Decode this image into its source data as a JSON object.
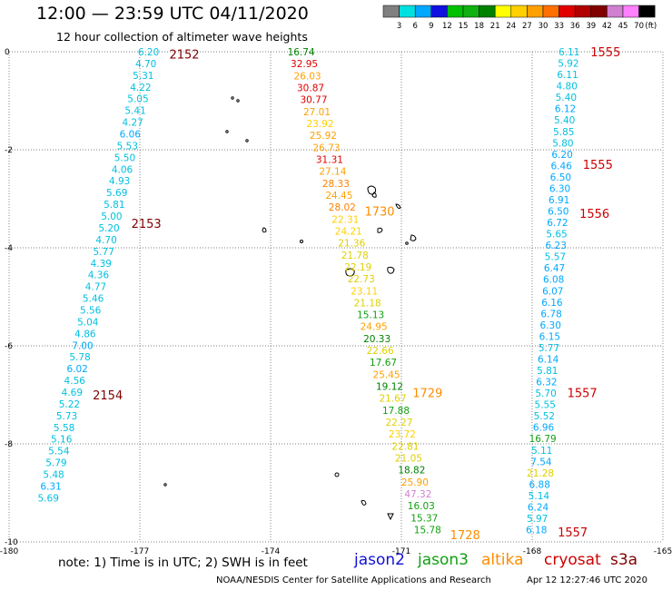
{
  "title": "12:00 — 23:59 UTC 04/11/2020",
  "subtitle": "12 hour collection of altimeter wave heights",
  "note": "note: 1) Time is in UTC; 2) SWH is in feet",
  "credit_org": "NOAA/NESDIS Center for Satellite Applications and Research",
  "credit_time": "Apr 12 12:27:46 UTC 2020",
  "satellites": [
    {
      "name": "jason2",
      "color": "#1010d8"
    },
    {
      "name": "jason3",
      "color": "#10a010"
    },
    {
      "name": "altika",
      "color": "#ff8c00"
    },
    {
      "name": "cryosat",
      "color": "#cc0000"
    },
    {
      "name": "s3a",
      "color": "#800000"
    }
  ],
  "colorbar": {
    "unit": "(ft)",
    "labels": [
      "3",
      "6",
      "9",
      "12",
      "15",
      "18",
      "21",
      "24",
      "27",
      "30",
      "33",
      "36",
      "39",
      "42",
      "45",
      "70"
    ],
    "colors": [
      "#808080",
      "#00e0e0",
      "#00a8ff",
      "#1010e0",
      "#00c000",
      "#10b010",
      "#008000",
      "#ffff00",
      "#ffd000",
      "#ffa000",
      "#ff7000",
      "#e00000",
      "#b00000",
      "#800000",
      "#d080d0",
      "#ff80ff",
      "#000000"
    ]
  },
  "axes": {
    "x_ticks": [
      "-180",
      "-177",
      "-174",
      "-171",
      "-168",
      "-165"
    ],
    "y_ticks": [
      "0",
      "-2",
      "-4",
      "-6",
      "-8",
      "-10"
    ],
    "lon_range": [
      -180,
      -165
    ],
    "lat_range": [
      -10,
      0
    ],
    "grid": "dotted"
  },
  "tracks": [
    {
      "satellite": "s3a",
      "lon_start": -176.8,
      "lon_end": -179.1,
      "lat_start": 0,
      "lat_end": -9.1,
      "values": [
        {
          "v": "6.20",
          "c": "#00c0e0"
        },
        {
          "v": "4.70",
          "c": "#00c0e0"
        },
        {
          "v": "5.31",
          "c": "#00c0e0"
        },
        {
          "v": "4.22",
          "c": "#00c0e0"
        },
        {
          "v": "5.05",
          "c": "#00c0e0"
        },
        {
          "v": "5.41",
          "c": "#00c0e0"
        },
        {
          "v": "4.27",
          "c": "#00c0e0"
        },
        {
          "v": "6.06",
          "c": "#00a8ff"
        },
        {
          "v": "5.53",
          "c": "#00c0e0"
        },
        {
          "v": "5.50",
          "c": "#00c0e0"
        },
        {
          "v": "4.06",
          "c": "#00c0e0"
        },
        {
          "v": "4.93",
          "c": "#00c0e0"
        },
        {
          "v": "5.69",
          "c": "#00c0e0"
        },
        {
          "v": "5.81",
          "c": "#00c0e0"
        },
        {
          "v": "5.00",
          "c": "#00c0e0"
        },
        {
          "v": "5.20",
          "c": "#00c0e0"
        },
        {
          "v": "4.70",
          "c": "#00c0e0"
        },
        {
          "v": "5.77",
          "c": "#00c0e0"
        },
        {
          "v": "4.39",
          "c": "#00c0e0"
        },
        {
          "v": "4.36",
          "c": "#00c0e0"
        },
        {
          "v": "4.77",
          "c": "#00c0e0"
        },
        {
          "v": "5.46",
          "c": "#00c0e0"
        },
        {
          "v": "5.56",
          "c": "#00c0e0"
        },
        {
          "v": "5.04",
          "c": "#00c0e0"
        },
        {
          "v": "4.86",
          "c": "#00c0e0"
        },
        {
          "v": "7.00",
          "c": "#00a8ff"
        },
        {
          "v": "5.78",
          "c": "#00c0e0"
        },
        {
          "v": "6.02",
          "c": "#00a8ff"
        },
        {
          "v": "4.56",
          "c": "#00c0e0"
        },
        {
          "v": "4.69",
          "c": "#00c0e0"
        },
        {
          "v": "5.22",
          "c": "#00c0e0"
        },
        {
          "v": "5.73",
          "c": "#00c0e0"
        },
        {
          "v": "5.58",
          "c": "#00c0e0"
        },
        {
          "v": "5.16",
          "c": "#00c0e0"
        },
        {
          "v": "5.54",
          "c": "#00c0e0"
        },
        {
          "v": "5.79",
          "c": "#00c0e0"
        },
        {
          "v": "5.48",
          "c": "#00c0e0"
        },
        {
          "v": "6.31",
          "c": "#00a8ff"
        },
        {
          "v": "5.69",
          "c": "#00c0e0"
        }
      ],
      "times": [
        {
          "t": "2152",
          "c": "#800000",
          "lat": -0.05
        },
        {
          "t": "2153",
          "c": "#800000",
          "lat": -3.5
        },
        {
          "t": "2154",
          "c": "#800000",
          "lat": -7.0
        }
      ]
    },
    {
      "satellite": "mixed",
      "lon_start": -173.3,
      "lon_end": -170.4,
      "lat_start": 0,
      "lat_end": -9.75,
      "values": [
        {
          "v": "16.74",
          "c": "#008000"
        },
        {
          "v": "32.95",
          "c": "#e00000"
        },
        {
          "v": "26.03",
          "c": "#ffa000"
        },
        {
          "v": "30.87",
          "c": "#e00000"
        },
        {
          "v": "30.77",
          "c": "#e00000"
        },
        {
          "v": "27.01",
          "c": "#ffa000"
        },
        {
          "v": "23.92",
          "c": "#ffd000"
        },
        {
          "v": "25.92",
          "c": "#ffa000"
        },
        {
          "v": "26.73",
          "c": "#ffa000"
        },
        {
          "v": "31.31",
          "c": "#e00000"
        },
        {
          "v": "27.14",
          "c": "#ffa000"
        },
        {
          "v": "28.33",
          "c": "#ff8000"
        },
        {
          "v": "24.45",
          "c": "#ffa000"
        },
        {
          "v": "28.02",
          "c": "#ff8000"
        },
        {
          "v": "22.31",
          "c": "#ffd000"
        },
        {
          "v": "24.21",
          "c": "#ffd000"
        },
        {
          "v": "21.36",
          "c": "#e0d000"
        },
        {
          "v": "21.78",
          "c": "#e0d000"
        },
        {
          "v": "22.19",
          "c": "#e0d000"
        },
        {
          "v": "22.73",
          "c": "#e0d000"
        },
        {
          "v": "23.11",
          "c": "#ffd000"
        },
        {
          "v": "21.18",
          "c": "#e0d000"
        },
        {
          "v": "15.13",
          "c": "#10a010"
        },
        {
          "v": "24.95",
          "c": "#ffa000"
        },
        {
          "v": "20.33",
          "c": "#008000"
        },
        {
          "v": "22.66",
          "c": "#e0d000"
        },
        {
          "v": "17.67",
          "c": "#10a010"
        },
        {
          "v": "25.45",
          "c": "#ffa000"
        },
        {
          "v": "19.12",
          "c": "#008000"
        },
        {
          "v": "21.67",
          "c": "#e0d000"
        },
        {
          "v": "17.88",
          "c": "#10a010"
        },
        {
          "v": "22.27",
          "c": "#e0d000"
        },
        {
          "v": "23.72",
          "c": "#ffd000"
        },
        {
          "v": "22.81",
          "c": "#e0d000"
        },
        {
          "v": "21.05",
          "c": "#e0d000"
        },
        {
          "v": "18.82",
          "c": "#008000"
        },
        {
          "v": "25.90",
          "c": "#ffa000"
        },
        {
          "v": "47.32",
          "c": "#d080d0"
        },
        {
          "v": "16.03",
          "c": "#10a010"
        },
        {
          "v": "15.37",
          "c": "#10a010"
        },
        {
          "v": "15.78",
          "c": "#10a010"
        }
      ],
      "times": [
        {
          "t": "1730",
          "c": "#ff8c00",
          "lat": -3.25
        },
        {
          "t": "1729",
          "c": "#ff8c00",
          "lat": -6.95
        },
        {
          "t": "1728",
          "c": "#ff8c00",
          "lat": -9.85
        }
      ]
    },
    {
      "satellite": "cryosat",
      "lon_start": -167.15,
      "lon_end": -167.9,
      "lat_start": 0,
      "lat_end": -9.75,
      "values": [
        {
          "v": "6.11",
          "c": "#00c0e0"
        },
        {
          "v": "5.92",
          "c": "#00c0e0"
        },
        {
          "v": "6.11",
          "c": "#00c0e0"
        },
        {
          "v": "4.80",
          "c": "#00c0e0"
        },
        {
          "v": "5.40",
          "c": "#00c0e0"
        },
        {
          "v": "6.12",
          "c": "#00a8ff"
        },
        {
          "v": "5.40",
          "c": "#00c0e0"
        },
        {
          "v": "5.85",
          "c": "#00c0e0"
        },
        {
          "v": "5.80",
          "c": "#00c0e0"
        },
        {
          "v": "6.20",
          "c": "#00a8ff"
        },
        {
          "v": "6.46",
          "c": "#00a8ff"
        },
        {
          "v": "6.50",
          "c": "#00a8ff"
        },
        {
          "v": "6.30",
          "c": "#00a8ff"
        },
        {
          "v": "6.91",
          "c": "#00a8ff"
        },
        {
          "v": "6.50",
          "c": "#00a8ff"
        },
        {
          "v": "6.72",
          "c": "#00a8ff"
        },
        {
          "v": "5.65",
          "c": "#00c0e0"
        },
        {
          "v": "6.23",
          "c": "#00a8ff"
        },
        {
          "v": "5.57",
          "c": "#00c0e0"
        },
        {
          "v": "6.47",
          "c": "#00a8ff"
        },
        {
          "v": "6.08",
          "c": "#00a8ff"
        },
        {
          "v": "6.07",
          "c": "#00a8ff"
        },
        {
          "v": "6.16",
          "c": "#00a8ff"
        },
        {
          "v": "6.78",
          "c": "#00a8ff"
        },
        {
          "v": "6.30",
          "c": "#00a8ff"
        },
        {
          "v": "6.15",
          "c": "#00a8ff"
        },
        {
          "v": "5.77",
          "c": "#00c0e0"
        },
        {
          "v": "6.14",
          "c": "#00a8ff"
        },
        {
          "v": "5.81",
          "c": "#00c0e0"
        },
        {
          "v": "6.32",
          "c": "#00a8ff"
        },
        {
          "v": "5.70",
          "c": "#00c0e0"
        },
        {
          "v": "5.55",
          "c": "#00c0e0"
        },
        {
          "v": "5.52",
          "c": "#00c0e0"
        },
        {
          "v": "6.96",
          "c": "#00a8ff"
        },
        {
          "v": "16.79",
          "c": "#10a010"
        },
        {
          "v": "5.11",
          "c": "#00c0e0"
        },
        {
          "v": "7.54",
          "c": "#00a8ff"
        },
        {
          "v": "21.28",
          "c": "#e0d000"
        },
        {
          "v": "6.88",
          "c": "#00a8ff"
        },
        {
          "v": "5.14",
          "c": "#00c0e0"
        },
        {
          "v": "6.24",
          "c": "#00a8ff"
        },
        {
          "v": "5.97",
          "c": "#00c0e0"
        },
        {
          "v": "6.18",
          "c": "#00a8ff"
        }
      ],
      "times": [
        {
          "t": "1555",
          "c": "#cc0000",
          "lat": 0
        },
        {
          "t": "1555",
          "c": "#cc0000",
          "lat": -2.3
        },
        {
          "t": "1556",
          "c": "#cc0000",
          "lat": -3.3
        },
        {
          "t": "1557",
          "c": "#cc0000",
          "lat": -6.95
        },
        {
          "t": "1557",
          "c": "#cc0000",
          "lat": -9.8
        }
      ]
    }
  ]
}
